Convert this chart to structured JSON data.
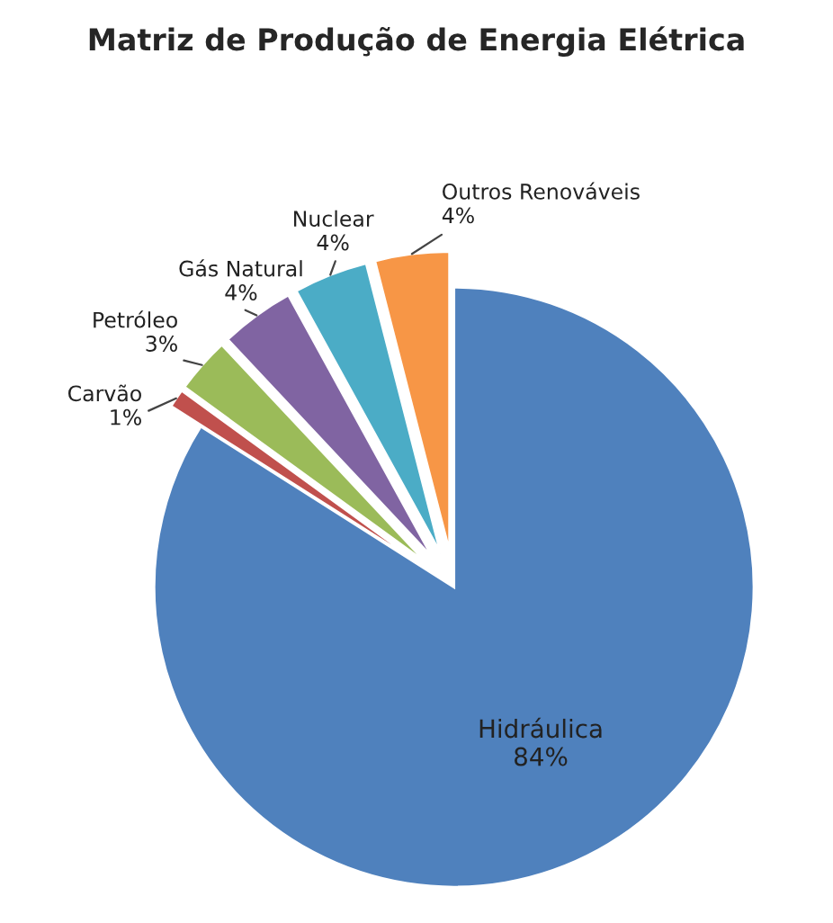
{
  "chart_data": {
    "type": "pie",
    "title": "Matriz de Produção de Energia Elétrica",
    "categories": [
      "Hidráulica",
      "Carvão",
      "Petróleo",
      "Gás Natural",
      "Nuclear",
      "Outros Renováveis"
    ],
    "values": [
      84,
      1,
      3,
      4,
      4,
      4
    ],
    "colors": [
      "#4f81bd",
      "#c0504d",
      "#9bbb59",
      "#8064a2",
      "#4bacc6",
      "#f79646"
    ],
    "value_labels": [
      "84%",
      "1%",
      "3%",
      "4%",
      "4%",
      "4%"
    ]
  }
}
